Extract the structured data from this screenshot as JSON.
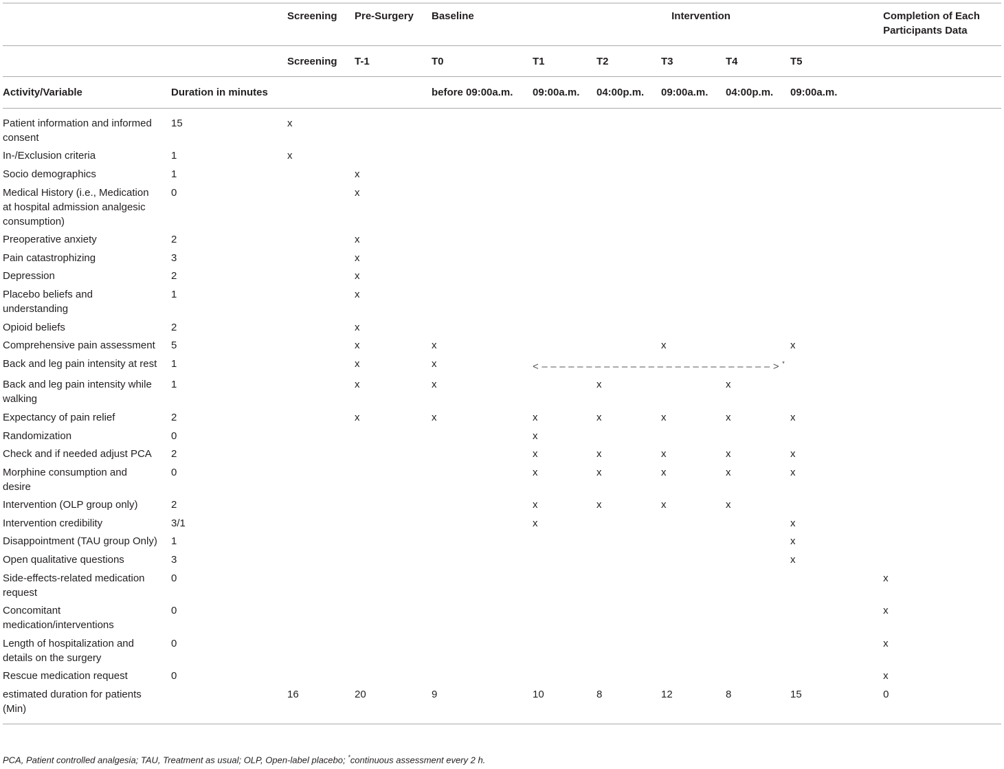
{
  "header": {
    "phases": [
      "Screening",
      "Pre-Surgery",
      "Baseline",
      "Intervention",
      "Completion of Each Participants Data"
    ],
    "timepoints": [
      "Screening",
      "T-1",
      "T0",
      "T1",
      "T2",
      "T3",
      "T4",
      "T5"
    ],
    "columns": [
      "Activity/Variable",
      "Duration in minutes"
    ],
    "times": [
      "before 09:00a.m.",
      "09:00a.m.",
      "04:00p.m.",
      "09:00a.m.",
      "04:00p.m.",
      "09:00a.m."
    ]
  },
  "table": {
    "rows": [
      [
        "Patient information and informed consent",
        15,
        "x",
        null,
        null,
        null,
        null,
        null,
        null,
        null,
        null
      ],
      [
        "In-/Exclusion criteria",
        1,
        "x",
        null,
        null,
        null,
        null,
        null,
        null,
        null,
        null
      ],
      [
        "Socio demographics",
        1,
        null,
        "x",
        null,
        null,
        null,
        null,
        null,
        null,
        null
      ],
      [
        "Medical History (i.e., Medication at hospital admission analgesic consumption)",
        0,
        null,
        "x",
        null,
        null,
        null,
        null,
        null,
        null,
        null
      ],
      [
        "Preoperative anxiety",
        2,
        null,
        "x",
        null,
        null,
        null,
        null,
        null,
        null,
        null
      ],
      [
        "Pain catastrophizing",
        3,
        null,
        "x",
        null,
        null,
        null,
        null,
        null,
        null,
        null
      ],
      [
        "Depression",
        2,
        null,
        "x",
        null,
        null,
        null,
        null,
        null,
        null,
        null
      ],
      [
        "Placebo beliefs and understanding",
        1,
        null,
        "x",
        null,
        null,
        null,
        null,
        null,
        null,
        null
      ],
      [
        "Opioid beliefs",
        2,
        null,
        "x",
        null,
        null,
        null,
        null,
        null,
        null,
        null
      ],
      [
        "Comprehensive pain assessment",
        5,
        null,
        "x",
        "x",
        null,
        null,
        "x",
        null,
        "x",
        null
      ],
      [
        "Back and leg pain intensity at rest",
        1,
        null,
        "x",
        "x",
        {
          "text": "<––––––––––––––––––––––––––>",
          "sup": "*"
        },
        null,
        null,
        null,
        null,
        null
      ],
      [
        "Back and leg pain intensity while walking",
        1,
        null,
        "x",
        "x",
        null,
        "x",
        null,
        "x",
        null,
        null
      ],
      [
        "Expectancy of pain relief",
        2,
        null,
        "x",
        "x",
        "x",
        "x",
        "x",
        "x",
        "x",
        null
      ],
      [
        "Randomization",
        0,
        null,
        null,
        null,
        "x",
        null,
        null,
        null,
        null,
        null
      ],
      [
        "Check and if needed adjust PCA",
        2,
        null,
        null,
        null,
        "x",
        "x",
        "x",
        "x",
        "x",
        null
      ],
      [
        "Morphine consumption and desire",
        0,
        null,
        null,
        null,
        "x",
        "x",
        "x",
        "x",
        "x",
        null
      ],
      [
        "Intervention (OLP group only)",
        2,
        null,
        null,
        null,
        "x",
        "x",
        "x",
        "x",
        null,
        null
      ],
      [
        "Intervention credibility",
        "3/1",
        null,
        null,
        null,
        "x",
        null,
        null,
        null,
        "x",
        null
      ],
      [
        "Disappointment (TAU group Only)",
        1,
        null,
        null,
        null,
        null,
        null,
        null,
        null,
        "x",
        null
      ],
      [
        "Open qualitative questions",
        3,
        null,
        null,
        null,
        null,
        null,
        null,
        null,
        "x",
        null
      ],
      [
        "Side-effects-related medication request",
        0,
        null,
        null,
        null,
        null,
        null,
        null,
        null,
        null,
        "x"
      ],
      [
        "Concomitant medication/interventions",
        0,
        null,
        null,
        null,
        null,
        null,
        null,
        null,
        null,
        "x"
      ],
      [
        "Length of hospitalization and details on the surgery",
        0,
        null,
        null,
        null,
        null,
        null,
        null,
        null,
        null,
        "x"
      ],
      [
        "Rescue medication request",
        0,
        null,
        null,
        null,
        null,
        null,
        null,
        null,
        null,
        "x"
      ],
      [
        "estimated duration for patients (Min)",
        null,
        16,
        20,
        9,
        10,
        8,
        12,
        8,
        15,
        0
      ]
    ]
  },
  "footnote": {
    "before": "PCA, Patient controlled analgesia; TAU, Treatment as usual; OLP, Open-label placebo; ",
    "sup": "*",
    "after": "continuous assessment every 2 h."
  }
}
